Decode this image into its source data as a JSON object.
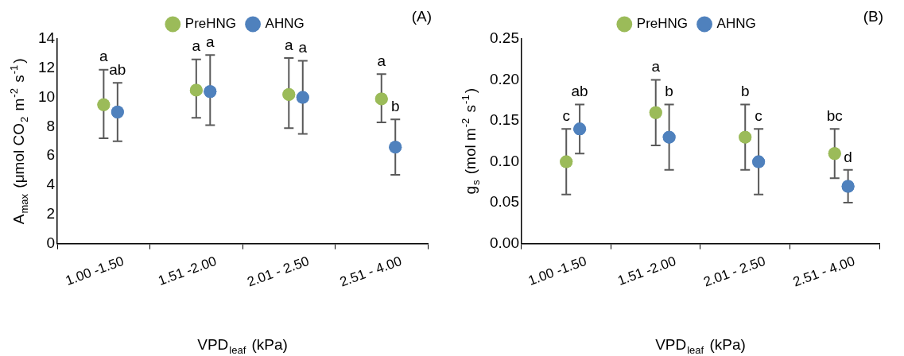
{
  "chart_data": [
    {
      "type": "scatter",
      "title": "(A)",
      "categories": [
        "1.00 -1.50",
        "1.51 -2.00",
        "2.01 - 2.50",
        "2.51 - 4.00"
      ],
      "xlabel": "VPD$_{leaf}$ (kPa)",
      "ylabel": "A$_{max}$ (μmol CO$_{2}$ m$^{-2}$ s$^{-1}$)",
      "ylim": [
        0,
        14
      ],
      "yticks": [
        0,
        2,
        4,
        6,
        8,
        10,
        12,
        14
      ],
      "legend": "top",
      "marker": "circle",
      "series": [
        {
          "name": "PreHNG",
          "color": "#9bbb59",
          "values": [
            9.5,
            10.5,
            10.2,
            9.9
          ],
          "errors": [
            [
              7.2,
              11.9
            ],
            [
              8.6,
              12.6
            ],
            [
              7.9,
              12.7
            ],
            [
              8.3,
              11.6
            ]
          ]
        },
        {
          "name": "AHNG",
          "color": "#4f81bd",
          "values": [
            9.0,
            10.4,
            10.0,
            6.6
          ],
          "errors": [
            [
              7.0,
              11.0
            ],
            [
              8.1,
              12.9
            ],
            [
              7.5,
              12.5
            ],
            [
              4.7,
              8.5
            ]
          ]
        }
      ],
      "annotations": [
        "a",
        "ab",
        "a",
        "a",
        "a",
        "a",
        "a",
        "b"
      ]
    },
    {
      "type": "scatter",
      "title": "(B)",
      "categories": [
        "1.00 -1.50",
        "1.51 -2.00",
        "2.01 - 2.50",
        "2.51 - 4.00"
      ],
      "xlabel": "VPD$_{leaf}$ (kPa)",
      "ylabel": "g$_{s}$ (mol m$^{-2}$ s$^{-1}$)",
      "ylim": [
        0,
        0.25
      ],
      "yticks": [
        {
          "value": 0,
          "label": "0.00"
        },
        {
          "value": 0.05,
          "label": "0.05"
        },
        {
          "value": 0.1,
          "label": "0.10"
        },
        {
          "value": 0.15,
          "label": "0.15"
        },
        {
          "value": 0.2,
          "label": "0.20"
        },
        {
          "value": 0.25,
          "label": "0.25"
        }
      ],
      "legend": "top",
      "marker": "circle",
      "series": [
        {
          "name": "PreHNG",
          "color": "#9bbb59",
          "values": [
            0.1,
            0.16,
            0.13,
            0.11
          ],
          "errors": [
            [
              0.06,
              0.14
            ],
            [
              0.12,
              0.2
            ],
            [
              0.09,
              0.17
            ],
            [
              0.08,
              0.14
            ]
          ]
        },
        {
          "name": "AHNG",
          "color": "#4f81bd",
          "values": [
            0.14,
            0.13,
            0.1,
            0.07
          ],
          "errors": [
            [
              0.11,
              0.17
            ],
            [
              0.09,
              0.17
            ],
            [
              0.06,
              0.14
            ],
            [
              0.05,
              0.09
            ]
          ]
        }
      ],
      "annotations": [
        "c",
        "ab",
        "a",
        "b",
        "b",
        "c",
        "bc",
        "d"
      ]
    }
  ]
}
